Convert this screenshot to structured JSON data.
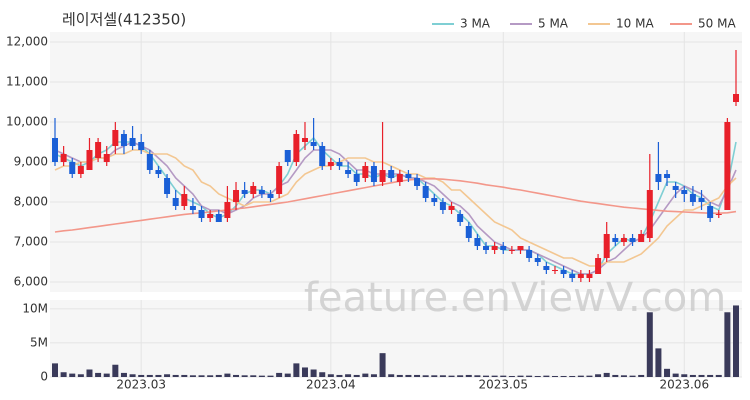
{
  "chart_data": {
    "type": "candlestick",
    "title": "레이저셀(412350)",
    "watermark": "feature.enViewV.com",
    "up_color": "#e8202a",
    "down_color": "#1a5fd6",
    "categories": [
      null,
      null,
      null,
      null,
      null,
      null,
      null,
      null,
      null,
      null,
      "2023.03",
      null,
      null,
      null,
      null,
      null,
      null,
      null,
      null,
      null,
      null,
      null,
      null,
      null,
      null,
      null,
      null,
      null,
      null,
      null,
      null,
      null,
      "2023.04",
      null,
      null,
      null,
      null,
      null,
      null,
      null,
      null,
      null,
      null,
      null,
      null,
      null,
      null,
      null,
      null,
      null,
      null,
      null,
      "2023.05",
      null,
      null,
      null,
      null,
      null,
      null,
      null,
      null,
      null,
      null,
      null,
      null,
      null,
      null,
      null,
      null,
      null,
      null,
      null,
      null,
      "2023.06",
      null,
      null,
      null,
      null,
      null,
      null
    ],
    "open": [
      9600,
      9000,
      9000,
      8700,
      8800,
      9100,
      9000,
      9400,
      9700,
      9600,
      9500,
      9200,
      8800,
      8600,
      8100,
      7900,
      7900,
      7800,
      7600,
      7700,
      7600,
      8000,
      8300,
      8200,
      8300,
      8200,
      8200,
      9300,
      9000,
      9500,
      9500,
      9400,
      8900,
      9000,
      8800,
      8700,
      8600,
      8900,
      8500,
      8800,
      8500,
      8700,
      8600,
      8400,
      8100,
      8000,
      7800,
      7700,
      7400,
      7100,
      6900,
      6800,
      6900,
      6800,
      6800,
      6800,
      6600,
      6400,
      6300,
      6300,
      6200,
      6100,
      6100,
      6200,
      6600,
      7100,
      7000,
      7100,
      7000,
      7100,
      8700,
      8700,
      8400,
      8300,
      8200,
      8100,
      7900,
      7700,
      7800,
      10500
    ],
    "high": [
      10100,
      9400,
      9100,
      9000,
      9600,
      9600,
      9400,
      10000,
      9800,
      9900,
      9700,
      9300,
      8900,
      8700,
      8300,
      8400,
      8100,
      7900,
      7800,
      7800,
      8400,
      8500,
      8500,
      8500,
      8400,
      8300,
      9000,
      9300,
      9800,
      10000,
      10100,
      9500,
      9100,
      9100,
      9000,
      8800,
      9000,
      9000,
      10000,
      8900,
      8800,
      8800,
      8700,
      8500,
      8200,
      8100,
      8000,
      7800,
      7500,
      7200,
      7000,
      7000,
      7000,
      6900,
      6900,
      6900,
      6700,
      6500,
      6400,
      6400,
      6300,
      6300,
      6300,
      6700,
      7500,
      7200,
      7200,
      7200,
      7300,
      9200,
      9500,
      8800,
      8500,
      8400,
      8400,
      8300,
      8000,
      7800,
      10100,
      11800
    ],
    "low": [
      8900,
      8900,
      8600,
      8600,
      8800,
      9000,
      8900,
      9200,
      9200,
      9300,
      9200,
      8700,
      8600,
      8100,
      7800,
      7800,
      7700,
      7500,
      7500,
      7500,
      7500,
      7800,
      8100,
      8100,
      8100,
      8000,
      8100,
      8900,
      8900,
      9300,
      9300,
      8800,
      8800,
      8800,
      8600,
      8400,
      8500,
      8400,
      8400,
      8500,
      8400,
      8500,
      8300,
      8000,
      7900,
      7700,
      7700,
      7400,
      7000,
      6800,
      6700,
      6700,
      6700,
      6700,
      6700,
      6500,
      6400,
      6200,
      6200,
      6100,
      6000,
      6000,
      6000,
      6200,
      6500,
      6900,
      6900,
      6900,
      7000,
      7000,
      8300,
      8400,
      8100,
      8000,
      7900,
      7800,
      7500,
      7600,
      7800,
      10400
    ],
    "close": [
      9000,
      9200,
      8700,
      8900,
      9300,
      9500,
      9200,
      9800,
      9400,
      9400,
      9300,
      8800,
      8700,
      8200,
      7900,
      8200,
      7800,
      7600,
      7700,
      7500,
      8000,
      8300,
      8200,
      8400,
      8200,
      8100,
      8900,
      9000,
      9700,
      9600,
      9400,
      8900,
      9000,
      8900,
      8700,
      8500,
      8900,
      8500,
      8800,
      8600,
      8700,
      8600,
      8400,
      8100,
      8000,
      7800,
      7900,
      7500,
      7100,
      6900,
      6800,
      6900,
      6800,
      6800,
      6900,
      6600,
      6500,
      6300,
      6300,
      6200,
      6100,
      6200,
      6200,
      6600,
      7200,
      7000,
      7100,
      7000,
      7200,
      8300,
      8500,
      8600,
      8300,
      8200,
      8000,
      8000,
      7600,
      7700,
      10000,
      10700
    ],
    "ylim": [
      5750,
      12250
    ],
    "yticks": [
      {
        "value": 6000,
        "label": "6,000"
      },
      {
        "value": 7000,
        "label": "7,000"
      },
      {
        "value": 8000,
        "label": "8,000"
      },
      {
        "value": 9000,
        "label": "9,000"
      },
      {
        "value": 10000,
        "label": "10,000"
      },
      {
        "value": 11000,
        "label": "11,000"
      },
      {
        "value": 12000,
        "label": "12,000"
      }
    ],
    "lines": [
      {
        "name": "3 MA",
        "color": "#7fcfd4",
        "values": [
          9200,
          9100,
          9000,
          8900,
          9000,
          9200,
          9300,
          9500,
          9500,
          9500,
          9400,
          9200,
          8900,
          8600,
          8300,
          8100,
          8000,
          7900,
          7700,
          7600,
          7700,
          7900,
          8200,
          8300,
          8300,
          8200,
          8400,
          8700,
          9200,
          9400,
          9600,
          9300,
          9100,
          8900,
          8900,
          8700,
          8700,
          8600,
          8700,
          8600,
          8700,
          8600,
          8600,
          8400,
          8200,
          8000,
          7900,
          7700,
          7500,
          7200,
          6900,
          6900,
          6800,
          6800,
          6800,
          6800,
          6700,
          6500,
          6400,
          6300,
          6200,
          6200,
          6200,
          6300,
          6700,
          6900,
          7100,
          7000,
          7100,
          7500,
          8000,
          8500,
          8500,
          8400,
          8200,
          8100,
          7900,
          7800,
          8400,
          9500
        ]
      },
      {
        "name": "5 MA",
        "color": "#b59ac4",
        "values": [
          9300,
          9200,
          9100,
          9000,
          9000,
          9100,
          9100,
          9300,
          9400,
          9500,
          9400,
          9300,
          9100,
          8900,
          8600,
          8400,
          8200,
          7900,
          7800,
          7800,
          7700,
          7800,
          7900,
          8100,
          8200,
          8200,
          8400,
          8500,
          8800,
          9100,
          9300,
          9300,
          9300,
          9200,
          9000,
          8800,
          8800,
          8700,
          8700,
          8700,
          8700,
          8600,
          8600,
          8500,
          8400,
          8200,
          8000,
          7900,
          7700,
          7400,
          7200,
          7000,
          6900,
          6800,
          6800,
          6800,
          6700,
          6600,
          6500,
          6400,
          6300,
          6200,
          6200,
          6300,
          6500,
          6600,
          6800,
          7000,
          7100,
          7300,
          7600,
          7900,
          8200,
          8400,
          8300,
          8200,
          8000,
          7900,
          8300,
          8800
        ]
      },
      {
        "name": "10 MA",
        "color": "#f3c792",
        "values": [
          8800,
          8900,
          8900,
          9000,
          9000,
          9100,
          9100,
          9200,
          9200,
          9300,
          9300,
          9200,
          9200,
          9200,
          9100,
          8900,
          8800,
          8500,
          8400,
          8200,
          8100,
          8000,
          7900,
          8000,
          8000,
          8000,
          8100,
          8200,
          8500,
          8700,
          8800,
          8900,
          8900,
          9000,
          9100,
          9100,
          9100,
          9000,
          9000,
          8900,
          8800,
          8700,
          8700,
          8600,
          8600,
          8500,
          8300,
          8300,
          8100,
          7900,
          7700,
          7500,
          7400,
          7300,
          7100,
          7000,
          6900,
          6800,
          6700,
          6600,
          6600,
          6500,
          6400,
          6400,
          6500,
          6500,
          6500,
          6600,
          6700,
          6900,
          7100,
          7400,
          7600,
          7800,
          7800,
          7900,
          8000,
          8100,
          8400,
          8600
        ]
      },
      {
        "name": "50 MA",
        "color": "#f3978a",
        "values": [
          7250,
          7280,
          7300,
          7330,
          7360,
          7390,
          7420,
          7450,
          7480,
          7510,
          7540,
          7570,
          7600,
          7630,
          7660,
          7690,
          7710,
          7730,
          7750,
          7780,
          7800,
          7830,
          7850,
          7880,
          7910,
          7940,
          7970,
          8000,
          8040,
          8080,
          8120,
          8160,
          8200,
          8240,
          8280,
          8320,
          8360,
          8400,
          8440,
          8480,
          8520,
          8550,
          8570,
          8580,
          8580,
          8570,
          8550,
          8530,
          8500,
          8470,
          8430,
          8400,
          8370,
          8330,
          8300,
          8260,
          8220,
          8180,
          8140,
          8100,
          8060,
          8020,
          7990,
          7960,
          7930,
          7900,
          7870,
          7850,
          7830,
          7810,
          7790,
          7770,
          7760,
          7750,
          7740,
          7730,
          7720,
          7720,
          7730,
          7760
        ]
      }
    ],
    "volume": {
      "color": "#3a3a5a",
      "values": [
        2000000,
        700000,
        500000,
        400000,
        1100000,
        600000,
        500000,
        1800000,
        600000,
        400000,
        300000,
        300000,
        300000,
        400000,
        300000,
        300000,
        250000,
        250000,
        250000,
        300000,
        500000,
        300000,
        250000,
        250000,
        200000,
        200000,
        600000,
        500000,
        2000000,
        1400000,
        1100000,
        700000,
        400000,
        300000,
        400000,
        300000,
        500000,
        400000,
        3500000,
        400000,
        300000,
        300000,
        300000,
        250000,
        250000,
        250000,
        200000,
        250000,
        300000,
        250000,
        200000,
        200000,
        200000,
        150000,
        200000,
        200000,
        150000,
        200000,
        150000,
        150000,
        150000,
        200000,
        200000,
        400000,
        600000,
        300000,
        250000,
        200000,
        300000,
        9500000,
        4200000,
        1200000,
        500000,
        400000,
        300000,
        300000,
        300000,
        300000,
        9500000,
        10500000
      ],
      "y2lim": [
        0,
        11300000
      ],
      "y2ticks": [
        0,
        {
          "value": 5000000,
          "label": "5M"
        },
        {
          "value": 10000000,
          "label": "10M"
        }
      ]
    },
    "grid": true
  }
}
